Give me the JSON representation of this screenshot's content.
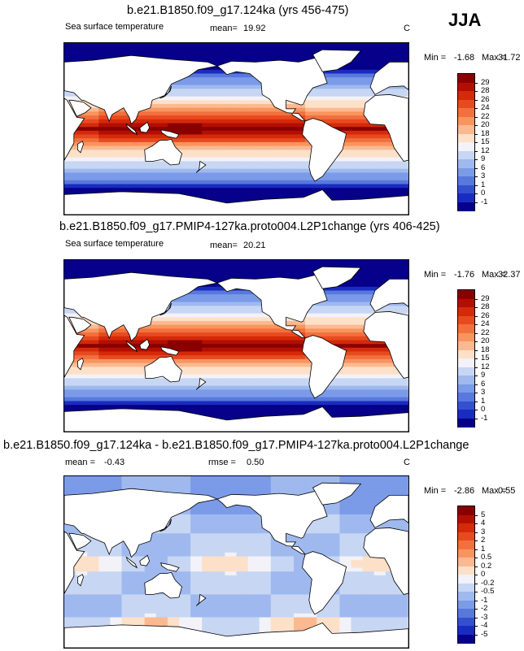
{
  "season": "JJA",
  "panels": [
    {
      "title": "b.e21.B1850.f09_g17.124ka (yrs 456-475)",
      "left_label": "Sea surface temperature",
      "stat_label": "mean=",
      "stat_value": "19.92",
      "stat2_label": "",
      "stat2_value": "",
      "units": "C",
      "min_label": "Min =",
      "min_value": "-1.68",
      "max_label": "Max =",
      "max_value": "31.72",
      "colorbar_labels": [
        "29",
        "28",
        "26",
        "24",
        "22",
        "20",
        "18",
        "15",
        "12",
        "9",
        "6",
        "3",
        "1",
        "0",
        "-1"
      ],
      "colorbar_colors": [
        "#8a0000",
        "#b30f00",
        "#d42a0a",
        "#e84a20",
        "#f2703e",
        "#f7955f",
        "#fbb991",
        "#fde0c8",
        "#f2f2f8",
        "#c7d6f3",
        "#9fb9ef",
        "#7b9ae8",
        "#5878dc",
        "#3450cf",
        "#1a2cbf",
        "#06008a"
      ],
      "field": "sst"
    },
    {
      "title": "b.e21.B1850.f09_g17.PMIP4-127ka.proto004.L2P1change (yrs 406-425)",
      "left_label": "Sea surface temperature",
      "stat_label": "mean=",
      "stat_value": "20.21",
      "stat2_label": "",
      "stat2_value": "",
      "units": "",
      "min_label": "Min =",
      "min_value": "-1.76",
      "max_label": "Max =",
      "max_value": "32.37",
      "colorbar_labels": [
        "29",
        "28",
        "26",
        "24",
        "22",
        "20",
        "18",
        "15",
        "12",
        "9",
        "6",
        "3",
        "1",
        "0",
        "-1"
      ],
      "colorbar_colors": [
        "#8a0000",
        "#b30f00",
        "#d42a0a",
        "#e84a20",
        "#f2703e",
        "#f7955f",
        "#fbb991",
        "#fde0c8",
        "#f2f2f8",
        "#c7d6f3",
        "#9fb9ef",
        "#7b9ae8",
        "#5878dc",
        "#3450cf",
        "#1a2cbf",
        "#06008a"
      ],
      "field": "sst"
    },
    {
      "title": "b.e21.B1850.f09_g17.124ka - b.e21.B1850.f09_g17.PMIP4-127ka.proto004.L2P1change",
      "left_label": "",
      "stat_label": "mean =",
      "stat_value": "-0.43",
      "stat2_label": "rmse =",
      "stat2_value": "0.50",
      "units": "C",
      "min_label": "Min =",
      "min_value": "-2.86",
      "max_label": "Max =",
      "max_value": "0.55",
      "colorbar_labels": [
        "5",
        "4",
        "3",
        "2",
        "1",
        "0.5",
        "0.2",
        "0",
        "-0.2",
        "-0.5",
        "-1",
        "-2",
        "-3",
        "-4",
        "-5"
      ],
      "colorbar_colors": [
        "#8a0000",
        "#b30f00",
        "#d42a0a",
        "#e84a20",
        "#f2703e",
        "#f7955f",
        "#fbb991",
        "#fde0c8",
        "#f2f2f8",
        "#c7d6f3",
        "#9fb9ef",
        "#7b9ae8",
        "#5878dc",
        "#3450cf",
        "#1a2cbf",
        "#06008a"
      ],
      "field": "diff"
    }
  ]
}
